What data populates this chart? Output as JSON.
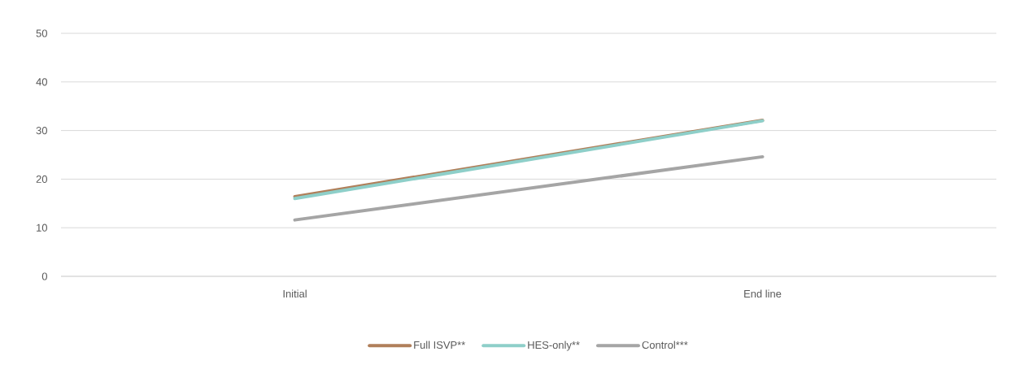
{
  "chart_data": {
    "type": "line",
    "categories": [
      "Initial",
      "End line"
    ],
    "series": [
      {
        "name": "Full ISVP**",
        "color": "#b07f5a",
        "values": [
          16.4,
          32.1
        ]
      },
      {
        "name": "HES-only**",
        "color": "#8ecfc9",
        "values": [
          16.0,
          32.0
        ]
      },
      {
        "name": "Control***",
        "color": "#a5a5a5",
        "values": [
          11.6,
          24.6
        ]
      }
    ],
    "ylim": [
      0,
      50
    ],
    "yticks": [
      0,
      10,
      20,
      30,
      40,
      50
    ],
    "grid": "y",
    "legend": "bottom",
    "marker": "none",
    "line_style": "solid"
  }
}
